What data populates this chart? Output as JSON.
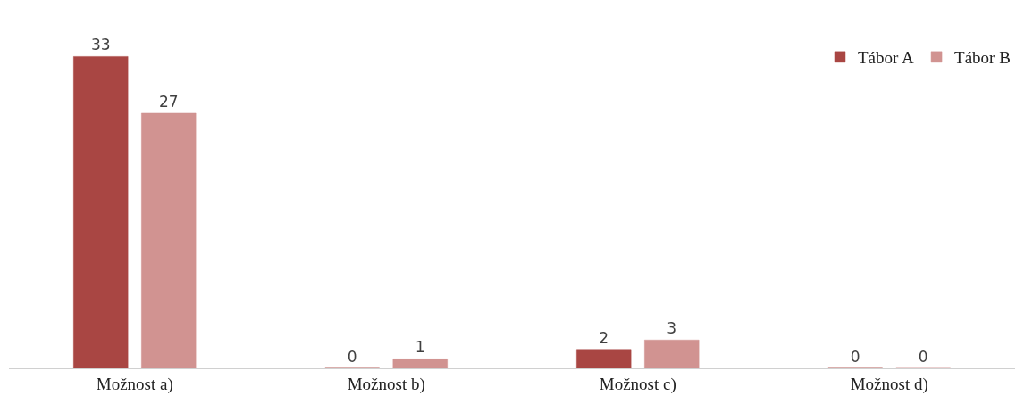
{
  "chart_data": {
    "type": "bar",
    "categories": [
      "Možnost a)",
      "Možnost b)",
      "Možnost c)",
      "Možnost d)"
    ],
    "series": [
      {
        "name": "Tábor A",
        "color": "#a94643",
        "values": [
          33,
          0,
          2,
          0
        ]
      },
      {
        "name": "Tábor B",
        "color": "#d19391",
        "values": [
          27,
          1,
          3,
          0
        ]
      }
    ],
    "data_labels": true,
    "legend": "top right",
    "tick_labels": "x"
  }
}
